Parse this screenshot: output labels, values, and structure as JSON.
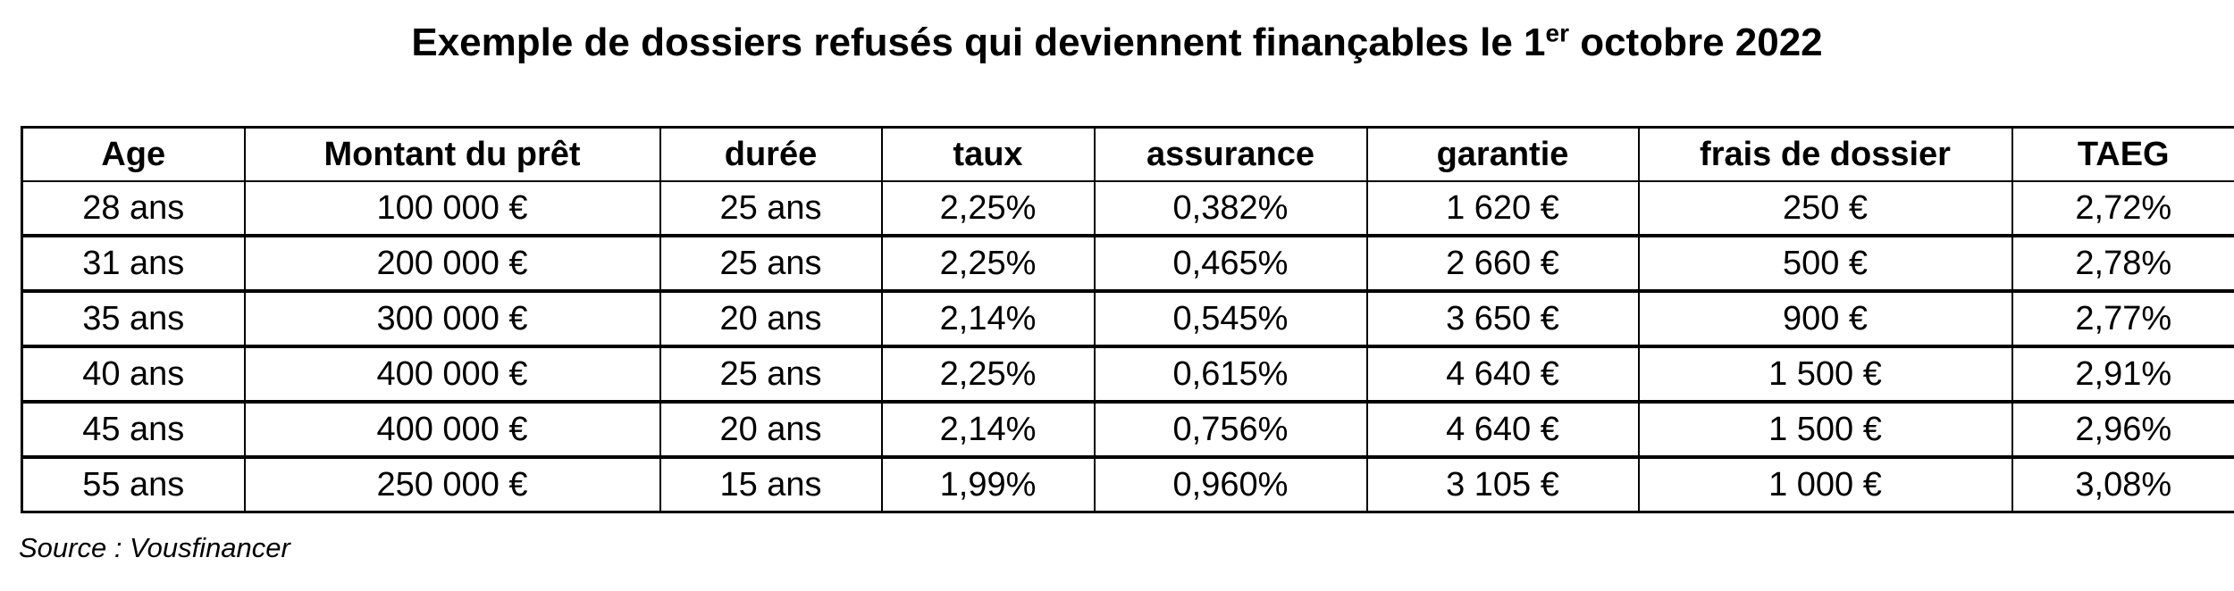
{
  "title": {
    "text": "Exemple de dossiers refusés qui deviennent finançables le 1",
    "superscript": "er",
    "text_after": " octobre 2022"
  },
  "table": {
    "headers": [
      "Age",
      "Montant du prêt",
      "durée",
      "taux",
      "assurance",
      "garantie",
      "frais de dossier",
      "TAEG"
    ],
    "rows": [
      [
        "28 ans",
        "100 000 €",
        "25 ans",
        "2,25%",
        "0,382%",
        "1 620 €",
        "250 €",
        "2,72%"
      ],
      [
        "31 ans",
        "200 000 €",
        "25 ans",
        "2,25%",
        "0,465%",
        "2 660 €",
        "500 €",
        "2,78%"
      ],
      [
        "35 ans",
        "300 000 €",
        "20 ans",
        "2,14%",
        "0,545%",
        "3 650 €",
        "900 €",
        "2,77%"
      ],
      [
        "40 ans",
        "400 000 €",
        "25 ans",
        "2,25%",
        "0,615%",
        "4 640 €",
        "1 500 €",
        "2,91%"
      ],
      [
        "45 ans",
        "400 000 €",
        "20 ans",
        "2,14%",
        "0,756%",
        "4 640 €",
        "1 500 €",
        "2,96%"
      ],
      [
        "55 ans",
        "250 000 €",
        "15 ans",
        "1,99%",
        "0,960%",
        "3 105 €",
        "1 000 €",
        "3,08%"
      ]
    ]
  },
  "source": "Source : Vousfinancer"
}
